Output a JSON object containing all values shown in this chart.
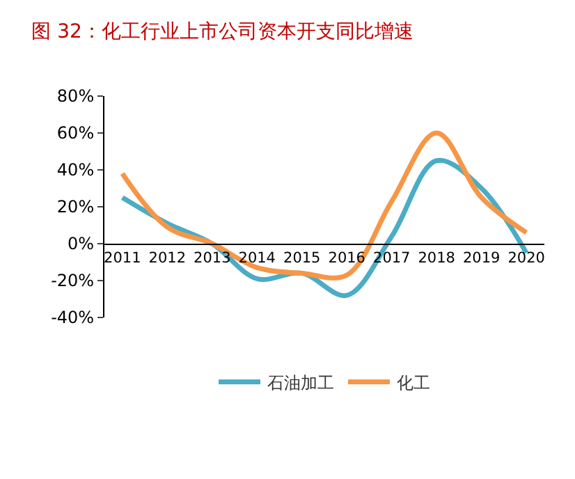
{
  "chart_data": {
    "type": "line",
    "title": "图 32：化工行业上市公司资本开支同比增速",
    "categories": [
      "2011",
      "2012",
      "2013",
      "2014",
      "2015",
      "2016",
      "2017",
      "2018",
      "2019",
      "2020"
    ],
    "series": [
      {
        "name": "石油加工",
        "color": "#4bacc6",
        "values": [
          25,
          11,
          0,
          -19,
          -16,
          -28,
          4,
          45,
          30,
          -5
        ]
      },
      {
        "name": "化工",
        "color": "#f79646",
        "values": [
          38,
          9,
          0,
          -13,
          -16,
          -17,
          23,
          60,
          25,
          6
        ]
      }
    ],
    "ylim": [
      -40,
      80
    ],
    "yticks": [
      {
        "value": -40,
        "label": "-40%"
      },
      {
        "value": -20,
        "label": "-20%"
      },
      {
        "value": 0,
        "label": "0%"
      },
      {
        "value": 20,
        "label": "20%"
      },
      {
        "value": 40,
        "label": "40%"
      },
      {
        "value": 60,
        "label": "60%"
      },
      {
        "value": 80,
        "label": "80%"
      }
    ],
    "legend": "bottom",
    "marker": "none",
    "line_style": "solid"
  }
}
